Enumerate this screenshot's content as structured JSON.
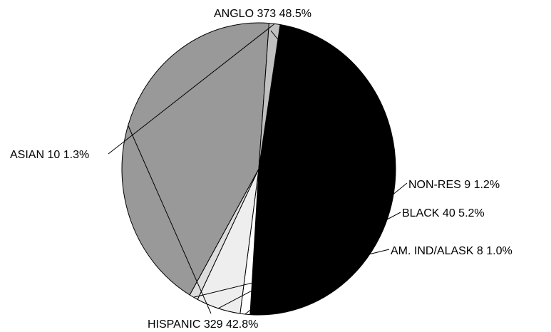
{
  "chart_data": {
    "type": "pie",
    "title": "",
    "slices": [
      {
        "name": "ANGLO",
        "count": "373",
        "percent": "48.5%",
        "value": 373,
        "color": "#000000"
      },
      {
        "name": "NON-RES",
        "count": "9",
        "percent": "1.2%",
        "value": 9,
        "color": "#ffffff"
      },
      {
        "name": "BLACK",
        "count": "40",
        "percent": "5.2%",
        "value": 40,
        "color": "#eeeeee"
      },
      {
        "name": "AM. IND/ALASK",
        "count": "8",
        "percent": "1.0%",
        "value": 8,
        "color": "#dddddd"
      },
      {
        "name": "HISPANIC",
        "count": "329",
        "percent": "42.8%",
        "value": 329,
        "color": "#999999"
      },
      {
        "name": "ASIAN",
        "count": "10",
        "percent": "1.3%",
        "value": 10,
        "color": "#c0c0c0"
      }
    ]
  }
}
